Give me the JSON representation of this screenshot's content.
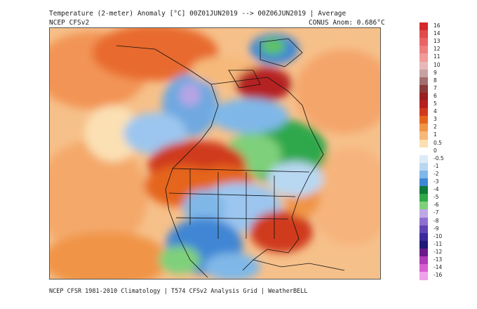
{
  "header": {
    "title": "Temperature (2-meter) Anomaly  [°C] 00Z01JUN2019 --> 00Z06JUN2019 | Average",
    "model": "NCEP CFSv2",
    "conus_anom": "CONUS Anom: 0.686°C"
  },
  "footer": "NCEP CFSR 1981-2010 Climatology | T574 CFSv2 Analysis Grid | WeatherBELL",
  "colorbar": {
    "labels": [
      "16",
      "14",
      "13",
      "12",
      "11",
      "10",
      "9",
      "8",
      "7",
      "6",
      "5",
      "4",
      "3",
      "2",
      "1",
      "0.5",
      "0",
      "-0.5",
      "-1",
      "-2",
      "-3",
      "-4",
      "-5",
      "-6",
      "-7",
      "-8",
      "-9",
      "-10",
      "-11",
      "-12",
      "-13",
      "-14",
      "-16"
    ],
    "colors": [
      "#d32a2a",
      "#e04a4a",
      "#e86464",
      "#ee7d7d",
      "#f29a9a",
      "#e7b8b8",
      "#c7a2a2",
      "#a36e6e",
      "#8a3b3b",
      "#9c1f1f",
      "#b52020",
      "#cf3a1e",
      "#e5651f",
      "#f09446",
      "#f6b97a",
      "#fbe0b4",
      "#ffffff",
      "#dcecf7",
      "#b8d8f1",
      "#7fb8e8",
      "#3f86d4",
      "#0f7a3a",
      "#2fa84b",
      "#7fd07a",
      "#bfa8e6",
      "#8f6fd0",
      "#5f46b4",
      "#3a2a9a",
      "#1f1a78",
      "#6a1a8a",
      "#b03ab8",
      "#d85fd2",
      "#efa2ea"
    ]
  }
}
